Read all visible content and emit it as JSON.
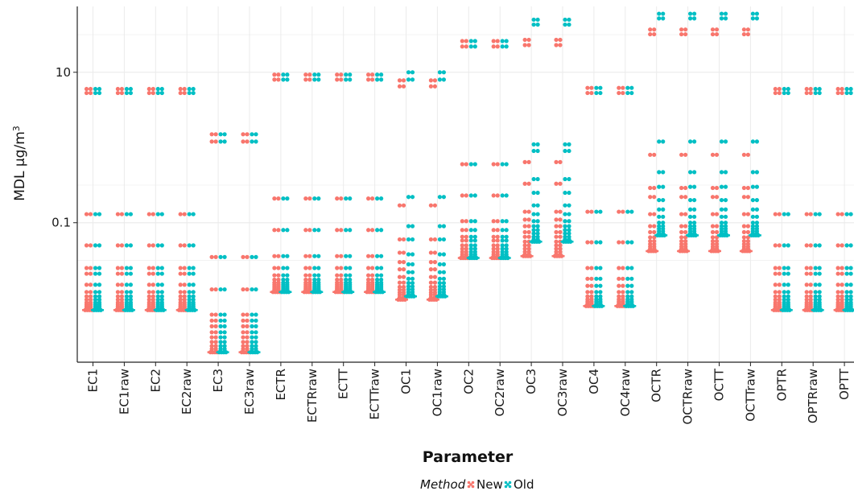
{
  "chart_data": {
    "type": "scatter",
    "xlabel": "Parameter",
    "ylabel": "MDL µg/m",
    "ylabel_superscript": "3",
    "y_scale": "log10",
    "ylim": [
      0.0014,
      75
    ],
    "y_ticks": [
      {
        "value": 0.1,
        "label": "0.1"
      },
      {
        "value": 10,
        "label": "10"
      }
    ],
    "grid": true,
    "legend": {
      "title": "Method",
      "placement": "bottom",
      "entries": [
        {
          "label": "New",
          "color": "#F8766D"
        },
        {
          "label": "Old",
          "color": "#00BFC4"
        }
      ]
    },
    "categories": [
      "EC1",
      "EC1raw",
      "EC2",
      "EC2raw",
      "EC3",
      "EC3raw",
      "ECTR",
      "ECTRraw",
      "ECTT",
      "ECTTraw",
      "OC1",
      "OC1raw",
      "OC2",
      "OC2raw",
      "OC3",
      "OC3raw",
      "OC4",
      "OC4raw",
      "OCTR",
      "OCTRraw",
      "OCTT",
      "OCTTraw",
      "OPTR",
      "OPTRraw",
      "OPTT",
      "OPTTraw"
    ],
    "series": [
      {
        "name": "New",
        "color": "#F8766D",
        "values": [
          [
            0.0069,
            0.0072,
            0.0075,
            0.0078,
            0.0082,
            0.0087,
            0.0095,
            0.0105,
            0.012,
            0.015,
            0.021,
            0.025,
            0.05,
            0.13,
            5.3,
            6.0
          ],
          [
            0.0069,
            0.0072,
            0.0075,
            0.0078,
            0.0082,
            0.0087,
            0.0095,
            0.0105,
            0.012,
            0.015,
            0.021,
            0.025,
            0.05,
            0.13,
            5.3,
            6.0
          ],
          [
            0.0069,
            0.0072,
            0.0075,
            0.0078,
            0.0082,
            0.0087,
            0.0095,
            0.0105,
            0.012,
            0.015,
            0.021,
            0.025,
            0.05,
            0.13,
            5.3,
            6.0
          ],
          [
            0.0069,
            0.0072,
            0.0075,
            0.0078,
            0.0082,
            0.0087,
            0.0095,
            0.0105,
            0.012,
            0.015,
            0.021,
            0.025,
            0.05,
            0.13,
            5.3,
            6.0
          ],
          [
            0.0019,
            0.0021,
            0.0023,
            0.0026,
            0.003,
            0.0035,
            0.0042,
            0.005,
            0.006,
            0.013,
            0.035,
            1.2,
            1.5
          ],
          [
            0.0019,
            0.0021,
            0.0023,
            0.0026,
            0.003,
            0.0035,
            0.0042,
            0.005,
            0.006,
            0.013,
            0.035,
            1.2,
            1.5
          ],
          [
            0.012,
            0.0125,
            0.013,
            0.0135,
            0.0142,
            0.015,
            0.016,
            0.0175,
            0.02,
            0.025,
            0.036,
            0.08,
            0.21,
            8.0,
            9.3
          ],
          [
            0.012,
            0.0125,
            0.013,
            0.0135,
            0.0142,
            0.015,
            0.016,
            0.0175,
            0.02,
            0.025,
            0.036,
            0.08,
            0.21,
            8.0,
            9.3
          ],
          [
            0.012,
            0.0125,
            0.013,
            0.0135,
            0.0142,
            0.015,
            0.016,
            0.0175,
            0.02,
            0.025,
            0.036,
            0.08,
            0.21,
            8.0,
            9.3
          ],
          [
            0.012,
            0.0125,
            0.013,
            0.0135,
            0.0142,
            0.015,
            0.016,
            0.0175,
            0.02,
            0.025,
            0.036,
            0.08,
            0.21,
            8.0,
            9.3
          ],
          [
            0.0095,
            0.0102,
            0.011,
            0.0118,
            0.0128,
            0.014,
            0.016,
            0.019,
            0.024,
            0.03,
            0.04,
            0.06,
            0.17,
            6.5,
            7.8
          ],
          [
            0.0095,
            0.0102,
            0.011,
            0.0118,
            0.0128,
            0.014,
            0.016,
            0.019,
            0.024,
            0.03,
            0.04,
            0.06,
            0.17,
            6.5,
            7.8
          ],
          [
            0.034,
            0.036,
            0.038,
            0.041,
            0.045,
            0.05,
            0.058,
            0.065,
            0.08,
            0.105,
            0.23,
            0.6,
            22.0,
            26.0
          ],
          [
            0.034,
            0.036,
            0.038,
            0.041,
            0.045,
            0.05,
            0.058,
            0.065,
            0.08,
            0.105,
            0.23,
            0.6,
            22.0,
            26.0
          ],
          [
            0.036,
            0.038,
            0.041,
            0.045,
            0.05,
            0.056,
            0.065,
            0.075,
            0.09,
            0.11,
            0.14,
            0.33,
            0.64,
            23.0,
            27.0
          ],
          [
            0.036,
            0.038,
            0.041,
            0.045,
            0.05,
            0.056,
            0.065,
            0.075,
            0.09,
            0.11,
            0.14,
            0.33,
            0.64,
            23.0,
            27.0
          ],
          [
            0.0078,
            0.0082,
            0.0086,
            0.009,
            0.0096,
            0.0105,
            0.012,
            0.0145,
            0.018,
            0.025,
            0.055,
            0.14,
            5.3,
            6.2
          ],
          [
            0.0078,
            0.0082,
            0.0086,
            0.009,
            0.0096,
            0.0105,
            0.012,
            0.0145,
            0.018,
            0.025,
            0.055,
            0.14,
            5.3,
            6.2
          ],
          [
            0.042,
            0.045,
            0.048,
            0.052,
            0.057,
            0.064,
            0.075,
            0.09,
            0.13,
            0.22,
            0.29,
            0.8,
            32.0,
            37.0
          ],
          [
            0.042,
            0.045,
            0.048,
            0.052,
            0.057,
            0.064,
            0.075,
            0.09,
            0.13,
            0.22,
            0.29,
            0.8,
            32.0,
            37.0
          ],
          [
            0.042,
            0.045,
            0.048,
            0.052,
            0.057,
            0.064,
            0.075,
            0.09,
            0.13,
            0.22,
            0.29,
            0.8,
            32.0,
            37.0
          ],
          [
            0.042,
            0.045,
            0.048,
            0.052,
            0.057,
            0.064,
            0.075,
            0.09,
            0.13,
            0.22,
            0.29,
            0.8,
            32.0,
            37.0
          ],
          [
            0.0069,
            0.0072,
            0.0075,
            0.0078,
            0.0082,
            0.0087,
            0.0095,
            0.0105,
            0.012,
            0.015,
            0.021,
            0.025,
            0.05,
            0.13,
            5.3,
            6.0
          ],
          [
            0.0069,
            0.0072,
            0.0075,
            0.0078,
            0.0082,
            0.0087,
            0.0095,
            0.0105,
            0.012,
            0.015,
            0.021,
            0.025,
            0.05,
            0.13,
            5.3,
            6.0
          ],
          [
            0.0069,
            0.0072,
            0.0075,
            0.0078,
            0.0082,
            0.0087,
            0.0095,
            0.0105,
            0.012,
            0.015,
            0.021,
            0.025,
            0.05,
            0.13,
            5.3,
            6.0
          ],
          [
            0.0069,
            0.0072,
            0.0075,
            0.0078,
            0.0082,
            0.0087,
            0.0095,
            0.0105,
            0.012,
            0.015,
            0.021,
            0.025,
            0.05,
            0.13,
            5.3,
            6.0
          ]
        ]
      },
      {
        "name": "Old",
        "color": "#00BFC4",
        "values": [
          [
            0.0069,
            0.0072,
            0.0075,
            0.0078,
            0.0082,
            0.0087,
            0.0095,
            0.0105,
            0.012,
            0.015,
            0.021,
            0.025,
            0.05,
            0.13,
            5.3,
            6.0
          ],
          [
            0.0069,
            0.0072,
            0.0075,
            0.0078,
            0.0082,
            0.0087,
            0.0095,
            0.0105,
            0.012,
            0.015,
            0.021,
            0.025,
            0.05,
            0.13,
            5.3,
            6.0
          ],
          [
            0.0069,
            0.0072,
            0.0075,
            0.0078,
            0.0082,
            0.0087,
            0.0095,
            0.0105,
            0.012,
            0.015,
            0.021,
            0.025,
            0.05,
            0.13,
            5.3,
            6.0
          ],
          [
            0.0069,
            0.0072,
            0.0075,
            0.0078,
            0.0082,
            0.0087,
            0.0095,
            0.0105,
            0.012,
            0.015,
            0.021,
            0.025,
            0.05,
            0.13,
            5.3,
            6.0
          ],
          [
            0.0019,
            0.0021,
            0.0023,
            0.0026,
            0.003,
            0.0035,
            0.0042,
            0.005,
            0.006,
            0.013,
            0.035,
            1.2,
            1.5
          ],
          [
            0.0019,
            0.0021,
            0.0023,
            0.0026,
            0.003,
            0.0035,
            0.0042,
            0.005,
            0.006,
            0.013,
            0.035,
            1.2,
            1.5
          ],
          [
            0.012,
            0.0125,
            0.013,
            0.0135,
            0.0142,
            0.015,
            0.016,
            0.0175,
            0.02,
            0.025,
            0.036,
            0.08,
            0.21,
            8.0,
            9.3
          ],
          [
            0.012,
            0.0125,
            0.013,
            0.0135,
            0.0142,
            0.015,
            0.016,
            0.0175,
            0.02,
            0.025,
            0.036,
            0.08,
            0.21,
            8.0,
            9.3
          ],
          [
            0.012,
            0.0125,
            0.013,
            0.0135,
            0.0142,
            0.015,
            0.016,
            0.0175,
            0.02,
            0.025,
            0.036,
            0.08,
            0.21,
            8.0,
            9.3
          ],
          [
            0.012,
            0.0125,
            0.013,
            0.0135,
            0.0142,
            0.015,
            0.016,
            0.0175,
            0.02,
            0.025,
            0.036,
            0.08,
            0.21,
            8.0,
            9.3
          ],
          [
            0.0105,
            0.0112,
            0.012,
            0.013,
            0.0142,
            0.0158,
            0.018,
            0.022,
            0.028,
            0.038,
            0.06,
            0.09,
            0.22,
            8.0,
            10.0
          ],
          [
            0.0105,
            0.0112,
            0.012,
            0.013,
            0.0142,
            0.0158,
            0.018,
            0.022,
            0.028,
            0.038,
            0.06,
            0.09,
            0.22,
            8.0,
            10.0
          ],
          [
            0.034,
            0.036,
            0.038,
            0.041,
            0.045,
            0.05,
            0.058,
            0.065,
            0.08,
            0.105,
            0.23,
            0.6,
            22.0,
            26.0
          ],
          [
            0.034,
            0.036,
            0.038,
            0.041,
            0.045,
            0.05,
            0.058,
            0.065,
            0.08,
            0.105,
            0.23,
            0.6,
            22.0,
            26.0
          ],
          [
            0.056,
            0.06,
            0.065,
            0.072,
            0.08,
            0.09,
            0.105,
            0.13,
            0.17,
            0.25,
            0.38,
            0.9,
            1.1,
            43.0,
            50.0
          ],
          [
            0.056,
            0.06,
            0.065,
            0.072,
            0.08,
            0.09,
            0.105,
            0.13,
            0.17,
            0.25,
            0.38,
            0.9,
            1.1,
            43.0,
            50.0
          ],
          [
            0.0078,
            0.0082,
            0.0086,
            0.009,
            0.0096,
            0.0105,
            0.012,
            0.0145,
            0.018,
            0.025,
            0.055,
            0.14,
            5.3,
            6.2
          ],
          [
            0.0078,
            0.0082,
            0.0086,
            0.009,
            0.0096,
            0.0105,
            0.012,
            0.0145,
            0.018,
            0.025,
            0.055,
            0.14,
            5.3,
            6.2
          ],
          [
            0.068,
            0.072,
            0.077,
            0.083,
            0.09,
            0.1,
            0.12,
            0.15,
            0.2,
            0.3,
            0.47,
            1.2,
            52.0,
            60.0
          ],
          [
            0.068,
            0.072,
            0.077,
            0.083,
            0.09,
            0.1,
            0.12,
            0.15,
            0.2,
            0.3,
            0.47,
            1.2,
            52.0,
            60.0
          ],
          [
            0.068,
            0.072,
            0.077,
            0.083,
            0.09,
            0.1,
            0.12,
            0.15,
            0.2,
            0.3,
            0.47,
            1.2,
            52.0,
            60.0
          ],
          [
            0.068,
            0.072,
            0.077,
            0.083,
            0.09,
            0.1,
            0.12,
            0.15,
            0.2,
            0.3,
            0.47,
            1.2,
            52.0,
            60.0
          ],
          [
            0.0069,
            0.0072,
            0.0075,
            0.0078,
            0.0082,
            0.0087,
            0.0095,
            0.0105,
            0.012,
            0.015,
            0.021,
            0.025,
            0.05,
            0.13,
            5.3,
            6.0
          ],
          [
            0.0069,
            0.0072,
            0.0075,
            0.0078,
            0.0082,
            0.0087,
            0.0095,
            0.0105,
            0.012,
            0.015,
            0.021,
            0.025,
            0.05,
            0.13,
            5.3,
            6.0
          ],
          [
            0.0069,
            0.0072,
            0.0075,
            0.0078,
            0.0082,
            0.0087,
            0.0095,
            0.0105,
            0.012,
            0.015,
            0.021,
            0.025,
            0.05,
            0.13,
            5.3,
            6.0
          ],
          [
            0.0069,
            0.0072,
            0.0075,
            0.0078,
            0.0082,
            0.0087,
            0.0095,
            0.0105,
            0.012,
            0.015,
            0.021,
            0.025,
            0.05,
            0.13,
            5.3,
            6.0
          ]
        ]
      }
    ]
  }
}
